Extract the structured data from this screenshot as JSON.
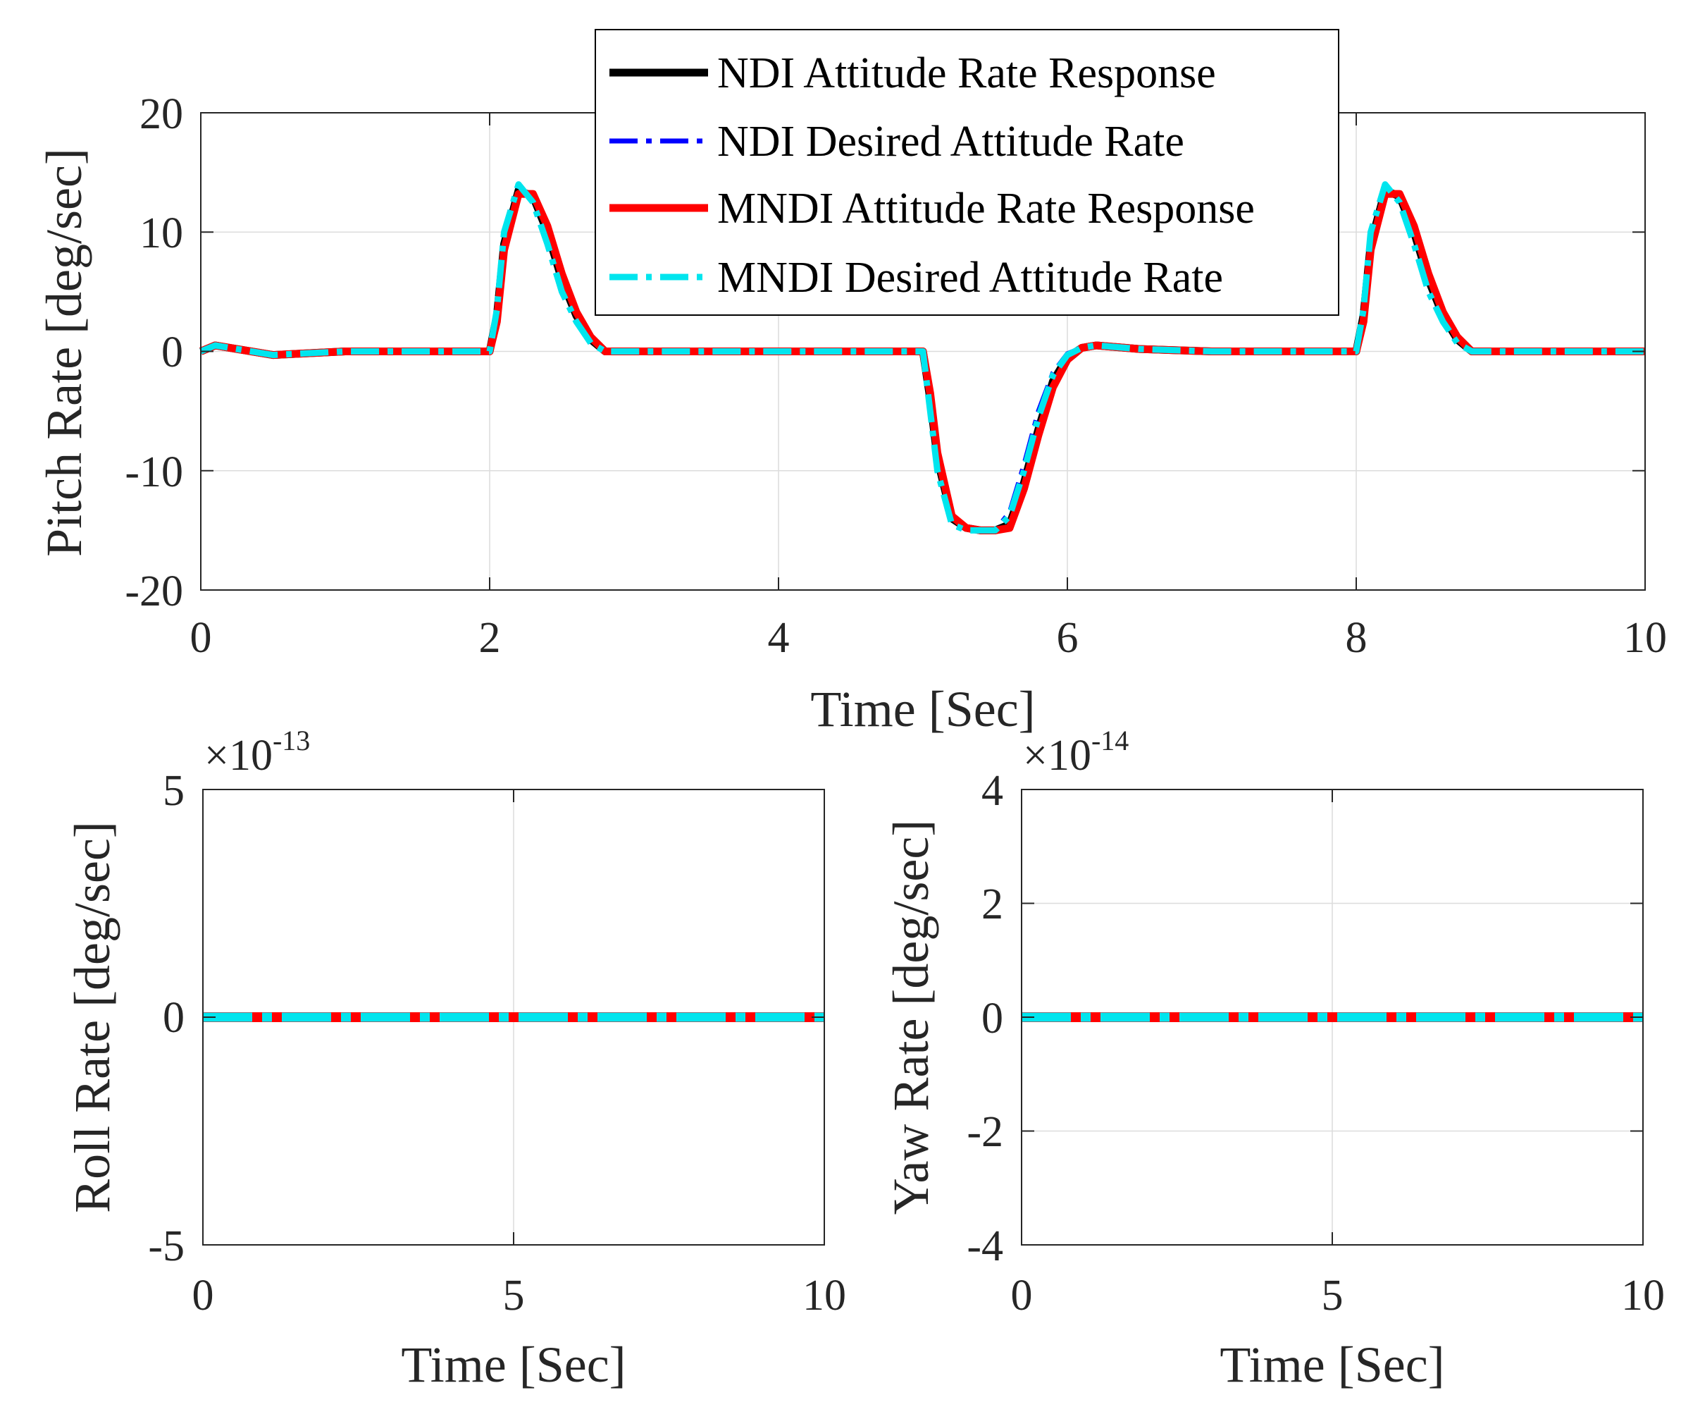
{
  "colors": {
    "ndi_response": "#000000",
    "ndi_desired": "#0000ff",
    "mndi_response": "#ff0000",
    "mndi_desired": "#00e5ee",
    "grid": "#dcdcdc",
    "axis": "#262626"
  },
  "legend": {
    "entries": [
      "NDI Attitude Rate Response",
      "NDI Desired Attitude Rate",
      "MNDI Attitude Rate Response",
      "MNDI Desired Attitude Rate"
    ]
  },
  "chart_data": [
    {
      "id": "pitch",
      "type": "line",
      "xlabel": "Time  [Sec]",
      "ylabel": "Pitch Rate [deg/sec]",
      "xlim": [
        0,
        10
      ],
      "ylim": [
        -20,
        20
      ],
      "xticks": [
        "0",
        "2",
        "4",
        "6",
        "8",
        "10"
      ],
      "yticks": [
        "20",
        "10",
        "0",
        "-10",
        "-20"
      ],
      "grid": true,
      "legend_position": "top",
      "series": [
        {
          "name": "NDI Attitude Rate Response",
          "style": "solid",
          "x": [
            0,
            0.1,
            0.2,
            0.5,
            1,
            2,
            2.05,
            2.1,
            2.2,
            2.3,
            2.4,
            2.5,
            2.6,
            2.7,
            2.8,
            3,
            4,
            5,
            5.05,
            5.1,
            5.2,
            5.3,
            5.4,
            5.5,
            5.6,
            5.7,
            5.8,
            5.9,
            6,
            6.1,
            6.2,
            6.5,
            7,
            8,
            8.05,
            8.1,
            8.2,
            8.3,
            8.4,
            8.5,
            8.6,
            8.7,
            8.8,
            9,
            10
          ],
          "y": [
            0,
            0.5,
            0.3,
            -0.3,
            0,
            0,
            3,
            9,
            13.5,
            13,
            10,
            6,
            3,
            1,
            0,
            0,
            0,
            0,
            -4,
            -9,
            -14,
            -14.8,
            -15,
            -15,
            -14.5,
            -11,
            -6.5,
            -2.5,
            -0.5,
            0.3,
            0.5,
            0.2,
            0,
            0,
            3,
            9,
            13.5,
            13,
            10,
            6,
            3,
            1,
            0,
            0,
            0
          ]
        },
        {
          "name": "NDI Desired Attitude Rate",
          "style": "dashdot",
          "x": [
            0,
            0.1,
            0.2,
            0.5,
            1,
            2,
            2.05,
            2.1,
            2.2,
            2.3,
            2.4,
            2.5,
            2.6,
            2.7,
            2.8,
            3,
            4,
            5,
            5.05,
            5.1,
            5.2,
            5.3,
            5.4,
            5.5,
            5.6,
            5.7,
            5.8,
            5.9,
            6,
            6.1,
            6.2,
            6.5,
            7,
            8,
            8.05,
            8.1,
            8.2,
            8.3,
            8.4,
            8.5,
            8.6,
            8.7,
            8.8,
            9,
            10
          ],
          "y": [
            0,
            0.5,
            0.3,
            -0.3,
            0,
            0,
            3.5,
            10,
            14,
            12.5,
            9,
            5,
            2.5,
            0.7,
            0,
            0,
            0,
            0,
            -5,
            -10,
            -14.5,
            -15,
            -15,
            -15,
            -13.5,
            -9.5,
            -5,
            -1.8,
            -0.2,
            0.3,
            0.5,
            0.2,
            0,
            0,
            3.5,
            10,
            14,
            12.5,
            9,
            5,
            2.5,
            0.7,
            0,
            0,
            0
          ]
        },
        {
          "name": "MNDI Attitude Rate Response",
          "style": "solid",
          "x": [
            0,
            0.1,
            0.2,
            0.5,
            1,
            2,
            2.05,
            2.1,
            2.2,
            2.3,
            2.4,
            2.5,
            2.6,
            2.7,
            2.8,
            3,
            4,
            5,
            5.05,
            5.1,
            5.2,
            5.3,
            5.4,
            5.5,
            5.6,
            5.7,
            5.8,
            5.9,
            6,
            6.1,
            6.2,
            6.5,
            7,
            8,
            8.05,
            8.1,
            8.2,
            8.3,
            8.4,
            8.5,
            8.6,
            8.7,
            8.8,
            9,
            10
          ],
          "y": [
            0,
            0.5,
            0.3,
            -0.3,
            0,
            0,
            2.5,
            8.5,
            13.2,
            13.2,
            10.5,
            6.5,
            3.3,
            1.2,
            0,
            0,
            0,
            0,
            -3.5,
            -8.5,
            -13.8,
            -14.8,
            -15,
            -15,
            -14.8,
            -11.5,
            -7,
            -3,
            -0.7,
            0.3,
            0.5,
            0.2,
            0,
            0,
            2.5,
            8.5,
            13.2,
            13.2,
            10.5,
            6.5,
            3.3,
            1.2,
            0,
            0,
            0
          ]
        },
        {
          "name": "MNDI Desired Attitude Rate",
          "style": "dashdot",
          "x": [
            0,
            0.1,
            0.2,
            0.5,
            1,
            2,
            2.05,
            2.1,
            2.2,
            2.3,
            2.4,
            2.5,
            2.6,
            2.7,
            2.8,
            3,
            4,
            5,
            5.05,
            5.1,
            5.2,
            5.3,
            5.4,
            5.5,
            5.6,
            5.7,
            5.8,
            5.9,
            6,
            6.1,
            6.2,
            6.5,
            7,
            8,
            8.05,
            8.1,
            8.2,
            8.3,
            8.4,
            8.5,
            8.6,
            8.7,
            8.8,
            9,
            10
          ],
          "y": [
            0,
            0.5,
            0.3,
            -0.3,
            0,
            0,
            3.5,
            10,
            14,
            12.5,
            9,
            5,
            2.5,
            0.7,
            0,
            0,
            0,
            0,
            -5,
            -10,
            -14.5,
            -15,
            -15,
            -15,
            -13.8,
            -10,
            -5.5,
            -2,
            -0.3,
            0.3,
            0.5,
            0.2,
            0,
            0,
            3.5,
            10,
            14,
            12.5,
            9,
            5,
            2.5,
            0.7,
            0,
            0,
            0
          ]
        }
      ]
    },
    {
      "id": "roll",
      "type": "line",
      "xlabel": "Time  [Sec]",
      "ylabel": "Roll Rate [deg/sec]",
      "xlim": [
        0,
        10
      ],
      "ylim": [
        -5,
        5
      ],
      "xticks": [
        "0",
        "5",
        "10"
      ],
      "yticks": [
        "5",
        "0",
        "-5"
      ],
      "multiplier": {
        "base": "×10",
        "exponent": "-13"
      },
      "grid": true,
      "series": [
        {
          "name": "NDI Attitude Rate Response",
          "x": [
            0,
            10
          ],
          "y": [
            0,
            0
          ]
        },
        {
          "name": "NDI Desired Attitude Rate",
          "x": [
            0,
            10
          ],
          "y": [
            0,
            0
          ]
        },
        {
          "name": "MNDI Attitude Rate Response",
          "x": [
            0,
            10
          ],
          "y": [
            0,
            0
          ]
        },
        {
          "name": "MNDI Desired Attitude Rate",
          "x": [
            0,
            10
          ],
          "y": [
            0,
            0
          ]
        }
      ]
    },
    {
      "id": "yaw",
      "type": "line",
      "xlabel": "Time  [Sec]",
      "ylabel": "Yaw Rate [deg/sec]",
      "xlim": [
        0,
        10
      ],
      "ylim": [
        -4,
        4
      ],
      "xticks": [
        "0",
        "5",
        "10"
      ],
      "yticks": [
        "4",
        "2",
        "0",
        "-2",
        "-4"
      ],
      "multiplier": {
        "base": "×10",
        "exponent": "-14"
      },
      "grid": true,
      "series": [
        {
          "name": "NDI Attitude Rate Response",
          "x": [
            0,
            10
          ],
          "y": [
            0,
            0
          ]
        },
        {
          "name": "NDI Desired Attitude Rate",
          "x": [
            0,
            10
          ],
          "y": [
            0,
            0
          ]
        },
        {
          "name": "MNDI Attitude Rate Response",
          "x": [
            0,
            10
          ],
          "y": [
            0,
            0
          ]
        },
        {
          "name": "MNDI Desired Attitude Rate",
          "x": [
            0,
            10
          ],
          "y": [
            0,
            0
          ]
        }
      ]
    }
  ]
}
